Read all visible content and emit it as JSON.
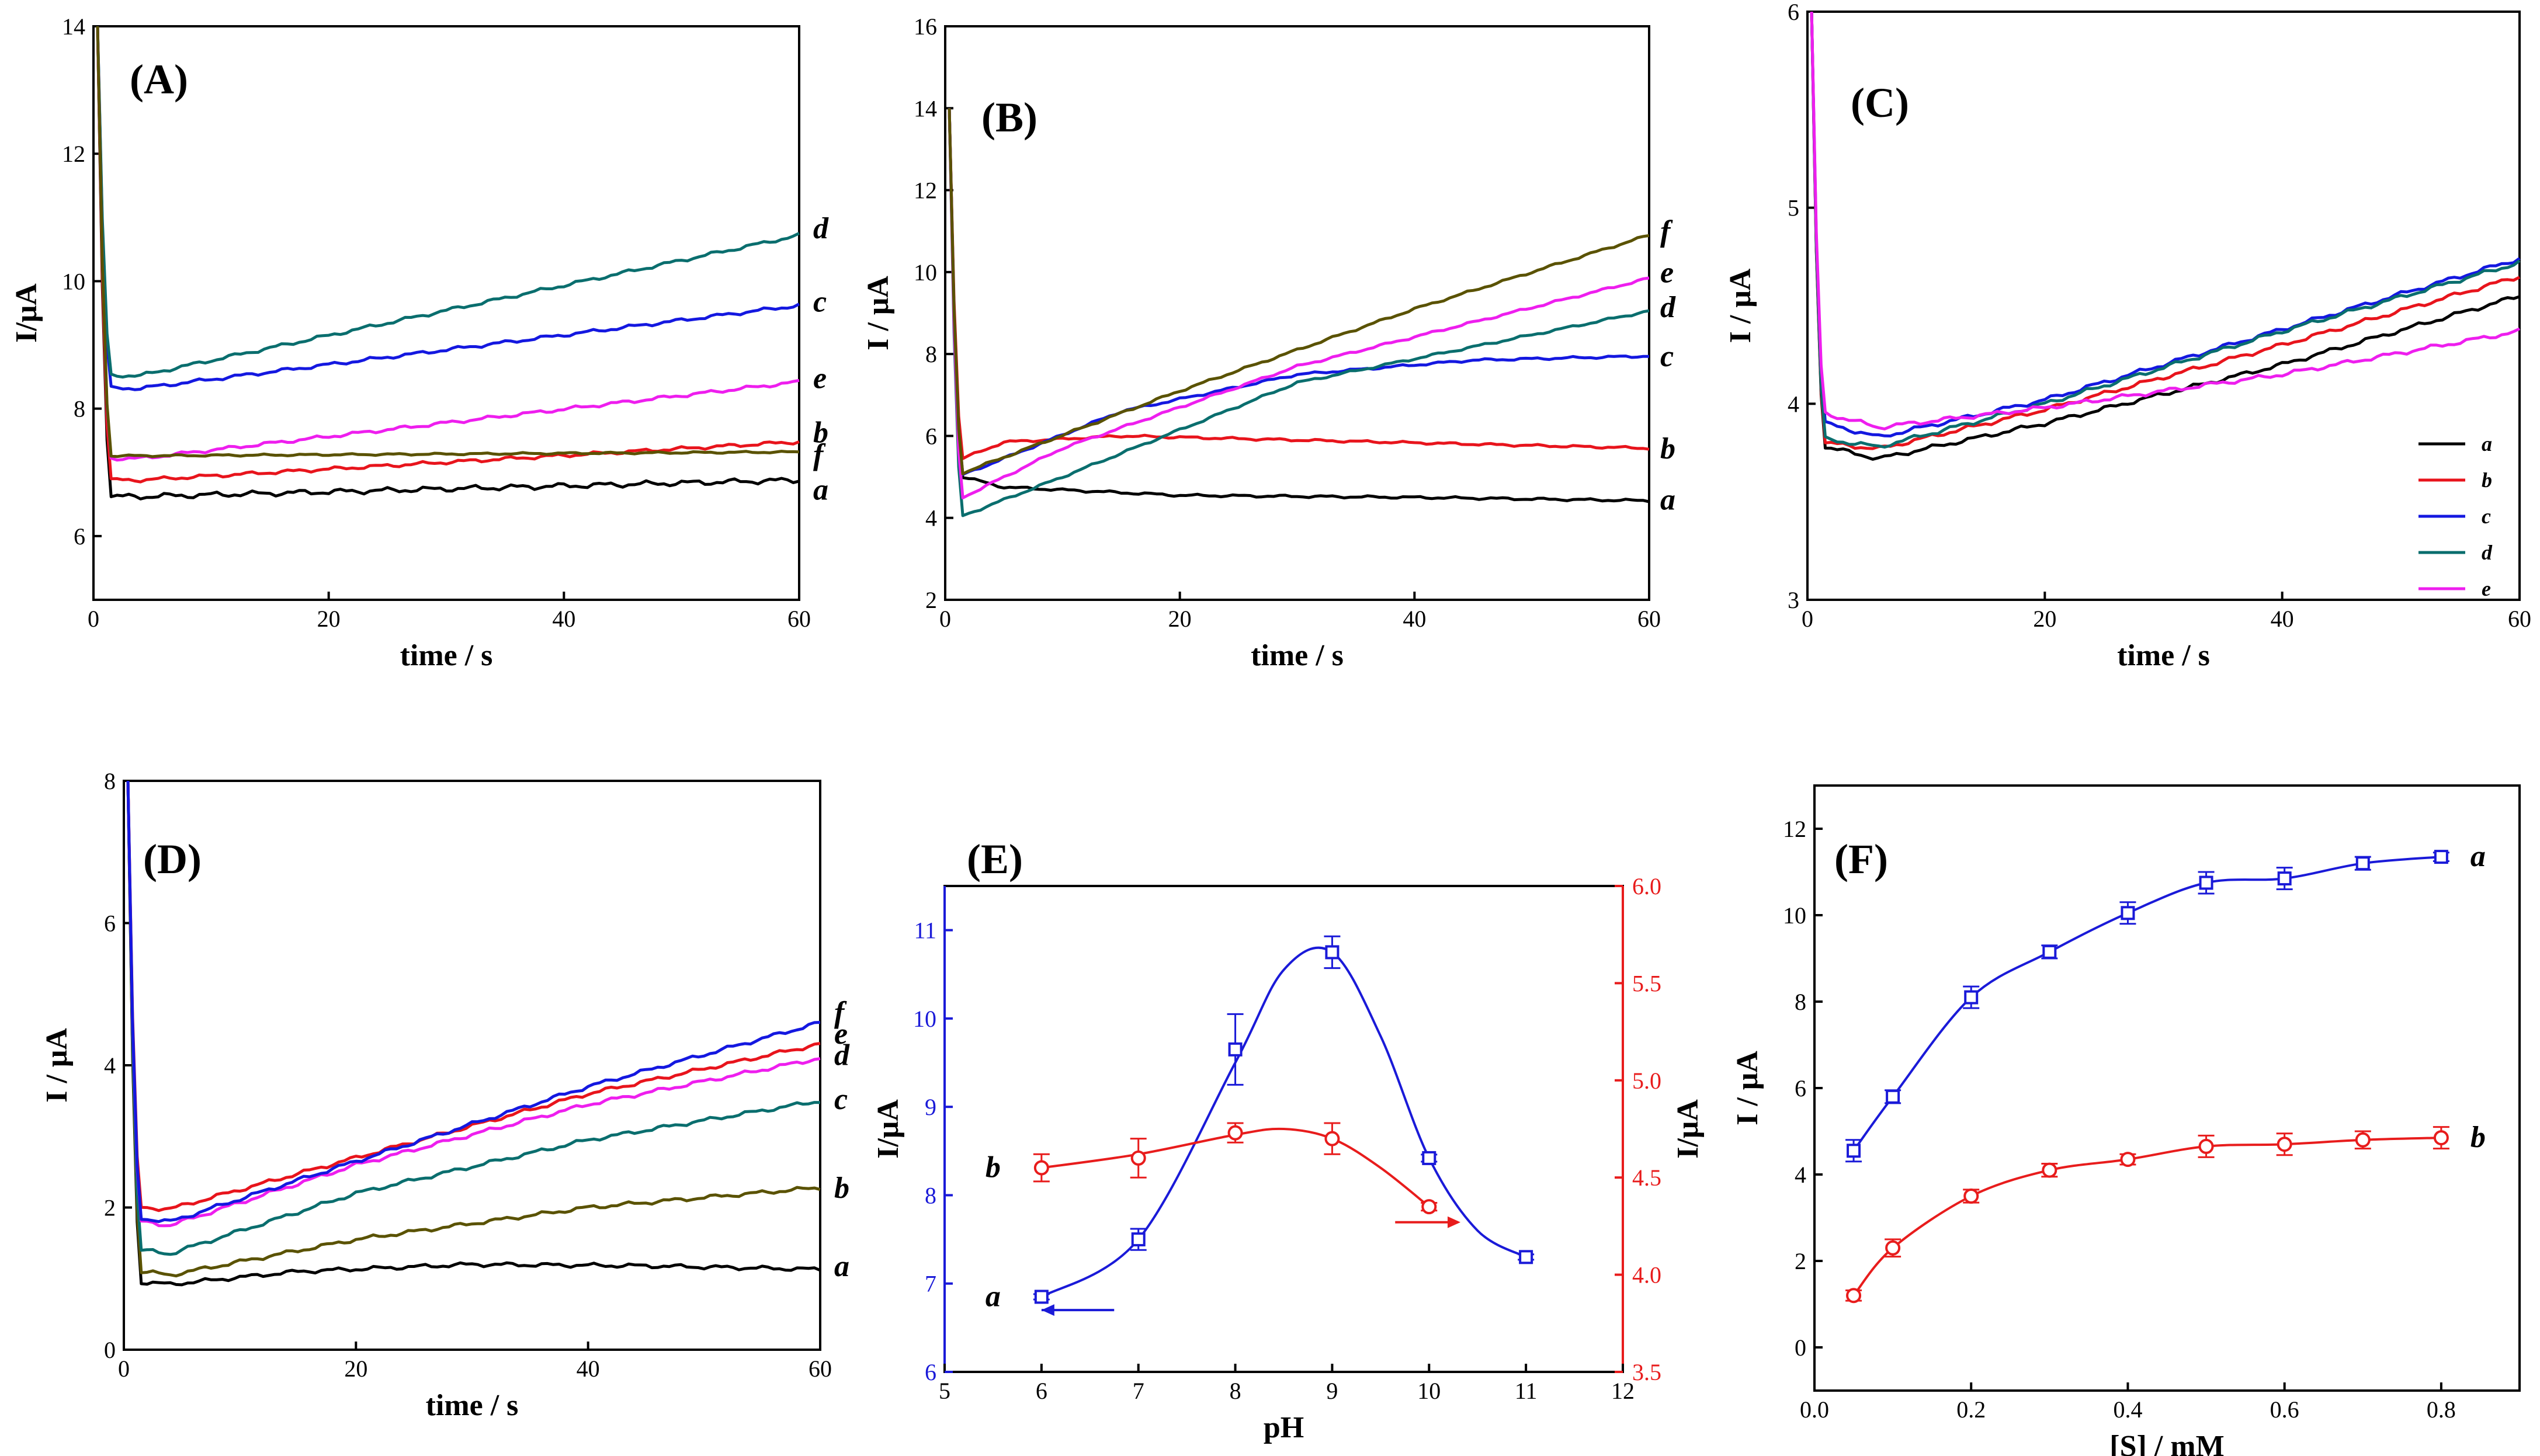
{
  "colors": {
    "a": "#000000",
    "b": "#e8141c",
    "c": "#1418e0",
    "d": "#0a6e6e",
    "e": "#ee1eee",
    "f": "#5a5200",
    "blue": "#1a1ad8",
    "red": "#e81c1c"
  },
  "chart_data": [
    {
      "id": "A",
      "type": "line",
      "label": "(A)",
      "xlabel": "time / s",
      "ylabel": "I/μA",
      "xlim": [
        0,
        60
      ],
      "ylim": [
        5,
        14
      ],
      "xticks": [
        0,
        20,
        40,
        60
      ],
      "yticks": [
        6,
        8,
        10,
        12,
        14
      ],
      "series": [
        {
          "name": "a",
          "color": "a",
          "start": 14,
          "plateau": 6.62,
          "end": 6.88,
          "noise": 0.03
        },
        {
          "name": "b",
          "color": "b",
          "start": 14,
          "plateau": 6.88,
          "end": 7.48,
          "noise": 0.02
        },
        {
          "name": "c",
          "color": "c",
          "start": 14,
          "plateau": 8.32,
          "end": 9.62,
          "noise": 0.02
        },
        {
          "name": "d",
          "color": "d",
          "start": 14,
          "plateau": 8.52,
          "end": 10.72,
          "noise": 0.02
        },
        {
          "name": "e",
          "color": "e",
          "start": 14,
          "plateau": 7.22,
          "end": 8.42,
          "noise": 0.02
        },
        {
          "name": "f",
          "color": "f",
          "start": 14,
          "plateau": 7.26,
          "end": 7.32,
          "noise": 0.01
        }
      ],
      "curve_labels": [
        {
          "text": "a",
          "y": 6.7
        },
        {
          "text": "b",
          "y": 7.6
        },
        {
          "text": "c",
          "y": 9.65
        },
        {
          "text": "d",
          "y": 10.8
        },
        {
          "text": "e",
          "y": 8.45
        },
        {
          "text": "f",
          "y": 7.25
        }
      ]
    },
    {
      "id": "B",
      "type": "line",
      "label": "(B)",
      "xlabel": "time / s",
      "ylabel": "I / μA",
      "xlim": [
        0,
        60
      ],
      "ylim": [
        2,
        16
      ],
      "xticks": [
        0,
        20,
        40,
        60
      ],
      "yticks": [
        2,
        4,
        6,
        8,
        10,
        12,
        14,
        16
      ],
      "series": [
        {
          "name": "a",
          "color": "a",
          "start": 14,
          "points": [
            [
              1.5,
              5.0
            ],
            [
              5,
              4.75
            ],
            [
              20,
              4.55
            ],
            [
              40,
              4.5
            ],
            [
              60,
              4.42
            ]
          ],
          "noise": 0.02
        },
        {
          "name": "b",
          "color": "b",
          "start": 14,
          "points": [
            [
              1.5,
              5.45
            ],
            [
              5,
              5.85
            ],
            [
              15,
              6.0
            ],
            [
              30,
              5.9
            ],
            [
              45,
              5.8
            ],
            [
              60,
              5.7
            ]
          ],
          "noise": 0.02
        },
        {
          "name": "c",
          "color": "c",
          "start": 14,
          "points": [
            [
              1.5,
              5.05
            ],
            [
              15,
              6.6
            ],
            [
              30,
              7.5
            ],
            [
              45,
              7.85
            ],
            [
              60,
              7.95
            ]
          ],
          "noise": 0.02
        },
        {
          "name": "d",
          "color": "d",
          "start": 14,
          "points": [
            [
              1.5,
              4.05
            ],
            [
              10,
              5.0
            ],
            [
              30,
              7.3
            ],
            [
              60,
              9.05
            ]
          ],
          "noise": 0.02
        },
        {
          "name": "e",
          "color": "e",
          "start": 14,
          "points": [
            [
              1.5,
              4.5
            ],
            [
              10,
              5.7
            ],
            [
              30,
              7.7
            ],
            [
              60,
              9.85
            ]
          ],
          "noise": 0.02
        },
        {
          "name": "f",
          "color": "f",
          "start": 14,
          "points": [
            [
              1.5,
              5.1
            ],
            [
              20,
              7.1
            ],
            [
              40,
              9.1
            ],
            [
              60,
              10.9
            ]
          ],
          "noise": 0.02
        }
      ],
      "curve_labels": [
        {
          "text": "a",
          "y": 4.4
        },
        {
          "text": "b",
          "y": 5.65
        },
        {
          "text": "c",
          "y": 7.9
        },
        {
          "text": "d",
          "y": 9.1
        },
        {
          "text": "e",
          "y": 9.95
        },
        {
          "text": "f",
          "y": 10.95
        }
      ]
    },
    {
      "id": "C",
      "type": "line",
      "label": "(C)",
      "xlabel": "time / s",
      "ylabel": "I / μA",
      "xlim": [
        0,
        60
      ],
      "ylim": [
        3,
        6
      ],
      "xticks": [
        0,
        20,
        40,
        60
      ],
      "yticks": [
        3,
        4,
        5,
        6
      ],
      "series": [
        {
          "name": "a",
          "color": "a",
          "start": 6,
          "points": [
            [
              1.5,
              3.78
            ],
            [
              6,
              3.72
            ],
            [
              20,
              3.9
            ],
            [
              40,
              4.2
            ],
            [
              60,
              4.55
            ]
          ],
          "noise": 0.008
        },
        {
          "name": "b",
          "color": "b",
          "start": 6,
          "points": [
            [
              1.5,
              3.8
            ],
            [
              6,
              3.77
            ],
            [
              20,
              3.97
            ],
            [
              40,
              4.3
            ],
            [
              60,
              4.65
            ]
          ],
          "noise": 0.008
        },
        {
          "name": "c",
          "color": "c",
          "start": 6,
          "points": [
            [
              1.5,
              3.9
            ],
            [
              6,
              3.83
            ],
            [
              20,
              4.02
            ],
            [
              40,
              4.38
            ],
            [
              60,
              4.74
            ]
          ],
          "noise": 0.008
        },
        {
          "name": "d",
          "color": "d",
          "start": 6,
          "points": [
            [
              1.5,
              3.82
            ],
            [
              6,
              3.78
            ],
            [
              20,
              4.0
            ],
            [
              40,
              4.37
            ],
            [
              60,
              4.72
            ]
          ],
          "noise": 0.008
        },
        {
          "name": "e",
          "color": "e",
          "start": 6,
          "points": [
            [
              1.5,
              3.95
            ],
            [
              6,
              3.88
            ],
            [
              20,
              3.98
            ],
            [
              40,
              4.15
            ],
            [
              60,
              4.37
            ]
          ],
          "noise": 0.008
        }
      ],
      "legend": {
        "position": "bottom-right",
        "items": [
          "a",
          "b",
          "c",
          "d",
          "e"
        ]
      }
    },
    {
      "id": "D",
      "type": "line",
      "label": "(D)",
      "xlabel": "time / s",
      "ylabel": "I / μA",
      "xlim": [
        0,
        60
      ],
      "ylim": [
        0,
        8
      ],
      "xticks": [
        0,
        20,
        40,
        60
      ],
      "yticks": [
        0,
        2,
        4,
        6,
        8
      ],
      "series": [
        {
          "name": "a",
          "color": "a",
          "start": 8,
          "points": [
            [
              1.5,
              0.95
            ],
            [
              4,
              0.92
            ],
            [
              15,
              1.1
            ],
            [
              30,
              1.2
            ],
            [
              45,
              1.18
            ],
            [
              60,
              1.13
            ]
          ],
          "noise": 0.02
        },
        {
          "name": "b",
          "color": "f",
          "start": 8,
          "points": [
            [
              1.5,
              1.1
            ],
            [
              4,
              1.05
            ],
            [
              20,
              1.55
            ],
            [
              40,
              2.0
            ],
            [
              60,
              2.28
            ]
          ],
          "noise": 0.02
        },
        {
          "name": "c",
          "color": "d",
          "start": 8,
          "points": [
            [
              1.5,
              1.4
            ],
            [
              4,
              1.35
            ],
            [
              20,
              2.2
            ],
            [
              40,
              2.95
            ],
            [
              60,
              3.5
            ]
          ],
          "noise": 0.02
        },
        {
          "name": "d",
          "color": "e",
          "start": 8,
          "points": [
            [
              1.5,
              1.8
            ],
            [
              4,
              1.75
            ],
            [
              20,
              2.6
            ],
            [
              40,
              3.45
            ],
            [
              60,
              4.1
            ]
          ],
          "noise": 0.02
        },
        {
          "name": "e",
          "color": "b",
          "start": 8,
          "points": [
            [
              1.5,
              2.0
            ],
            [
              4,
              1.98
            ],
            [
              20,
              2.7
            ],
            [
              40,
              3.6
            ],
            [
              60,
              4.3
            ]
          ],
          "noise": 0.02
        },
        {
          "name": "f",
          "color": "c",
          "start": 8,
          "points": [
            [
              1.5,
              1.85
            ],
            [
              4,
              1.8
            ],
            [
              20,
              2.65
            ],
            [
              40,
              3.7
            ],
            [
              60,
              4.6
            ]
          ],
          "noise": 0.02
        }
      ],
      "curve_labels": [
        {
          "text": "a",
          "y": 1.15
        },
        {
          "text": "b",
          "y": 2.25
        },
        {
          "text": "c",
          "y": 3.5
        },
        {
          "text": "d",
          "y": 4.12
        },
        {
          "text": "e",
          "y": 4.42
        },
        {
          "text": "f",
          "y": 4.72
        }
      ]
    },
    {
      "id": "E",
      "type": "scatter",
      "label": "(E)",
      "xlabel": "pH",
      "ylabel_left": "I/μA",
      "ylabel_right": "I/μA",
      "xlim": [
        5,
        12
      ],
      "ylim_left": [
        6,
        11.5
      ],
      "ylim_right": [
        3.5,
        6.0
      ],
      "xticks": [
        5,
        6,
        7,
        8,
        9,
        10,
        11,
        12
      ],
      "yticks_left": [
        6,
        7,
        8,
        9,
        10,
        11
      ],
      "yticks_right": [
        "3.5",
        "4.0",
        "4.5",
        "5.0",
        "5.5",
        "6.0"
      ],
      "series": [
        {
          "name": "a",
          "axis": "left",
          "color": "blue",
          "marker": "square",
          "x": [
            6,
            7,
            8,
            9,
            10,
            11
          ],
          "y": [
            6.85,
            7.5,
            9.65,
            10.75,
            8.42,
            7.3
          ],
          "err": [
            0.03,
            0.12,
            0.4,
            0.18,
            0.04,
            0.03
          ]
        },
        {
          "name": "b",
          "axis": "right",
          "color": "red",
          "marker": "circle",
          "x": [
            6,
            7,
            8,
            9,
            10
          ],
          "y": [
            4.55,
            4.6,
            4.73,
            4.7,
            4.35
          ],
          "err": [
            0.07,
            0.1,
            0.05,
            0.08,
            0.02
          ]
        }
      ],
      "curve_labels": [
        {
          "text": "a"
        },
        {
          "text": "b"
        }
      ]
    },
    {
      "id": "F",
      "type": "scatter",
      "label": "(F)",
      "xlabel": "[S] / mM",
      "ylabel": "I / μA",
      "xlim": [
        0,
        0.9
      ],
      "ylim": [
        -1,
        13
      ],
      "xticks": [
        "0.0",
        "0.2",
        "0.4",
        "0.6",
        "0.8"
      ],
      "yticks": [
        0,
        2,
        4,
        6,
        8,
        10,
        12
      ],
      "series": [
        {
          "name": "a",
          "color": "blue",
          "marker": "square",
          "x": [
            0.05,
            0.1,
            0.2,
            0.3,
            0.4,
            0.5,
            0.6,
            0.7,
            0.8
          ],
          "y": [
            4.55,
            5.8,
            8.1,
            9.15,
            10.05,
            10.75,
            10.85,
            11.2,
            11.35
          ],
          "err": [
            0.25,
            0.15,
            0.25,
            0.15,
            0.25,
            0.25,
            0.25,
            0.15,
            0.1
          ]
        },
        {
          "name": "b",
          "color": "red",
          "marker": "circle",
          "x": [
            0.05,
            0.1,
            0.2,
            0.3,
            0.4,
            0.5,
            0.6,
            0.7,
            0.8
          ],
          "y": [
            1.2,
            2.3,
            3.5,
            4.1,
            4.35,
            4.65,
            4.7,
            4.8,
            4.85
          ],
          "err": [
            0.12,
            0.2,
            0.15,
            0.15,
            0.12,
            0.25,
            0.25,
            0.2,
            0.25
          ]
        }
      ],
      "curve_labels": [
        {
          "text": "a",
          "y": 11.35
        },
        {
          "text": "b",
          "y": 4.85
        }
      ]
    }
  ]
}
